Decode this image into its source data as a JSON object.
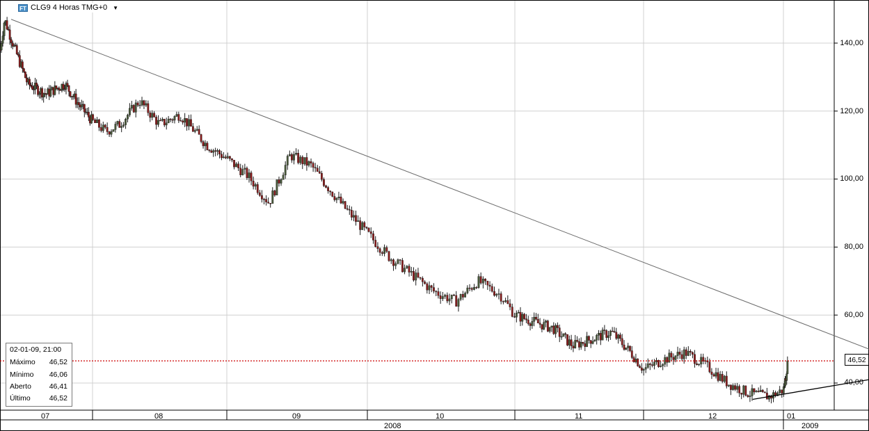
{
  "header": {
    "icon_text": "FT",
    "symbol_title": "CLG9 4 Horas TMG+0"
  },
  "info_panel": {
    "datetime": "02-01-09, 21:00",
    "rows": [
      {
        "label": "Máximo",
        "value": "46,52"
      },
      {
        "label": "Mínimo",
        "value": "46,06"
      },
      {
        "label": "Aberto",
        "value": "46,41"
      },
      {
        "label": "Último",
        "value": "46,52"
      }
    ]
  },
  "last_price_label": "46,52",
  "colors": {
    "up_candle": "#4a5a3a",
    "down_candle": "#8b1a1a",
    "last_price_line": "#cc0000",
    "trend_line_upper": "#6a6a6a",
    "trend_line_lower": "#000000",
    "grid": "#d0d0d0"
  },
  "chart_data": {
    "type": "candlestick",
    "interval": "4 Horas",
    "y_tick_labels": [
      "140,00",
      "120,00",
      "100,00",
      "80,00",
      "60,00",
      "40,00"
    ],
    "y_ticks": [
      140,
      120,
      100,
      80,
      60,
      40
    ],
    "ylim": [
      31,
      151
    ],
    "last_price": 46.52,
    "month_labels": [
      "07",
      "08",
      "09",
      "10",
      "11",
      "12",
      "01"
    ],
    "year_labels": [
      "2008",
      "2009"
    ],
    "grid": true,
    "price_path_month_index": [
      0,
      0.05,
      0.15,
      0.3,
      0.5,
      0.7,
      0.85,
      1.0,
      1.1,
      1.2,
      1.35,
      1.5,
      1.65,
      1.85,
      2.0,
      2.15,
      2.3,
      2.45,
      2.6,
      2.75,
      2.85,
      3.0,
      3.15,
      3.3,
      3.45,
      3.6,
      3.75,
      3.9,
      4.0,
      4.15,
      4.3,
      4.45,
      4.6,
      4.75,
      4.9,
      5.0,
      5.15,
      5.3,
      5.45,
      5.6,
      5.75,
      5.9,
      6.0,
      6.05,
      6.08
    ],
    "price_path_values": [
      138,
      147,
      139,
      128,
      125,
      128,
      122,
      117,
      114,
      116,
      123,
      116,
      119,
      110,
      106,
      101,
      93,
      107,
      104,
      96,
      91,
      84,
      77,
      72,
      67,
      64,
      70,
      66,
      60,
      58,
      56,
      51,
      53,
      55,
      49,
      44,
      47,
      49,
      45,
      40,
      37,
      36,
      38,
      42,
      46.52
    ],
    "trend_lines": [
      {
        "from": {
          "month_index": 0.12,
          "value": 147
        },
        "to": {
          "month_index": 6.35,
          "value": 50
        }
      },
      {
        "from": {
          "month_index": 5.78,
          "value": 35.2
        },
        "to": {
          "month_index": 6.35,
          "value": 41
        }
      }
    ]
  }
}
